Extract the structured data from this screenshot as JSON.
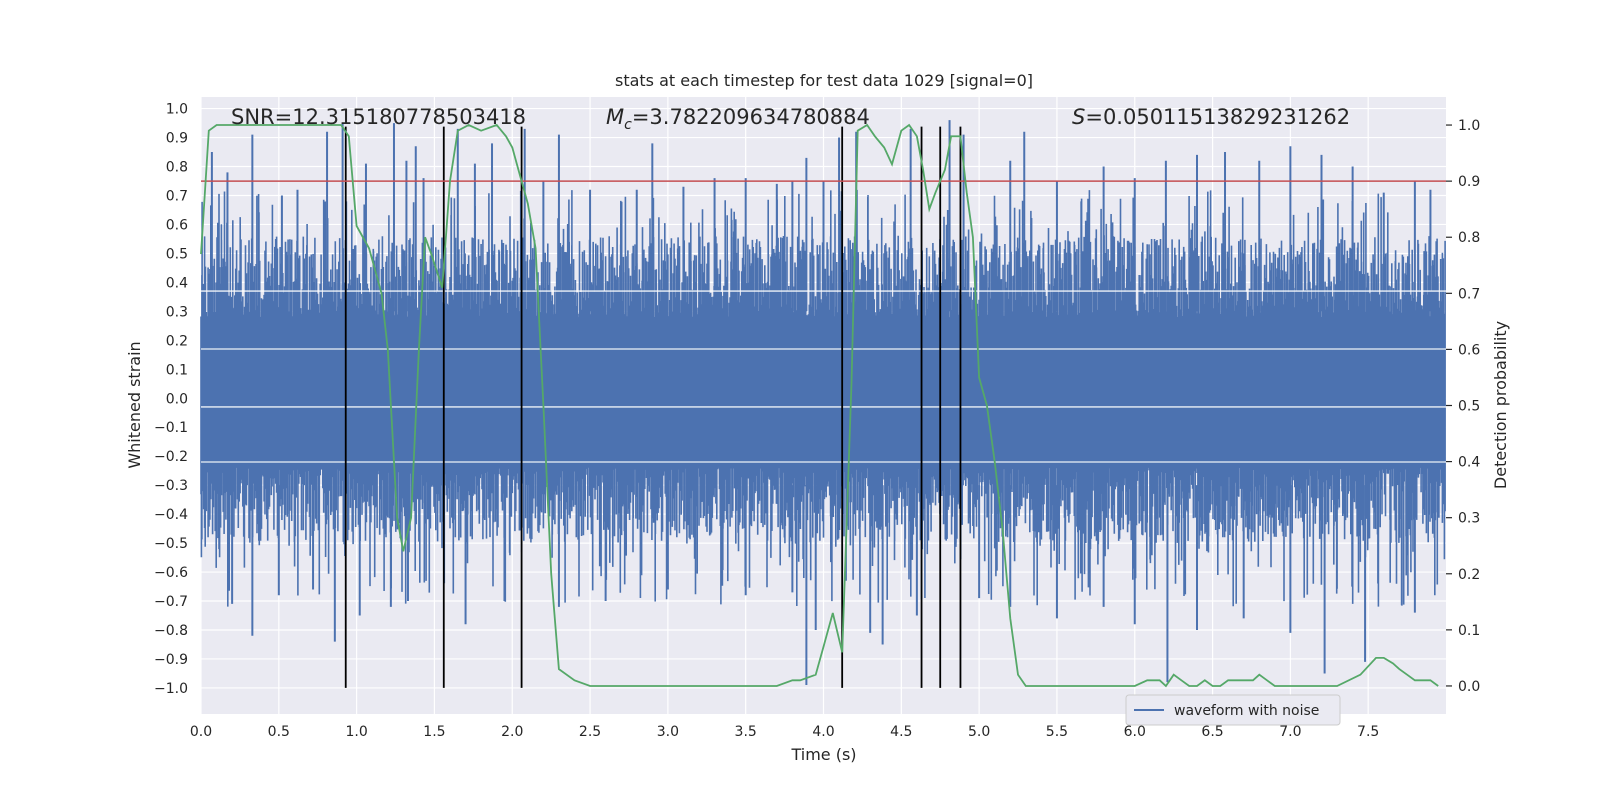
{
  "chart_data": {
    "type": "line",
    "title": "stats at each timestep for test data 1029 [signal=0]",
    "xlabel": "Time (s)",
    "ylabel": "Whitened strain",
    "ylabel_right": "Detection probability",
    "xlim": [
      0,
      8
    ],
    "ylim": [
      -1.09,
      1.04
    ],
    "ylim_right": [
      -0.05,
      1.05
    ],
    "x_ticks": [
      0.0,
      0.5,
      1.0,
      1.5,
      2.0,
      2.5,
      3.0,
      3.5,
      4.0,
      4.5,
      5.0,
      5.5,
      6.0,
      6.5,
      7.0,
      7.5
    ],
    "x_tick_labels": [
      "0.0",
      "0.5",
      "1.0",
      "1.5",
      "2.0",
      "2.5",
      "3.0",
      "3.5",
      "4.0",
      "4.5",
      "5.0",
      "5.5",
      "6.0",
      "6.5",
      "7.0",
      "7.5"
    ],
    "y_ticks": [
      1.0,
      0.9,
      0.8,
      0.7,
      0.6,
      0.5,
      0.4,
      0.3,
      0.2,
      0.1,
      0.0,
      -0.1,
      -0.2,
      -0.3,
      -0.4,
      -0.5,
      -0.6,
      -0.7,
      -0.8,
      -0.9,
      -1.0
    ],
    "y_tick_labels": [
      "1.0",
      "0.9",
      "0.8",
      "0.7",
      "0.6",
      "0.5",
      "0.4",
      "0.3",
      "0.2",
      "0.1",
      "0.0",
      "−0.1",
      "−0.2",
      "−0.3",
      "−0.4",
      "−0.5",
      "−0.6",
      "−0.7",
      "−0.8",
      "−0.9",
      "−1.0"
    ],
    "y_right_ticks": [
      1.0,
      0.9,
      0.8,
      0.7,
      0.6,
      0.5,
      0.4,
      0.3,
      0.2,
      0.1,
      0.0
    ],
    "y_right_tick_labels": [
      "1.0",
      "0.9",
      "0.8",
      "0.7",
      "0.6",
      "0.5",
      "0.4",
      "0.3",
      "0.2",
      "0.1",
      "0.0"
    ],
    "grid": true,
    "annotations": {
      "snr": "SNR=12.315180778503418",
      "mc_symbol": "M",
      "mc_subscript": "c",
      "mc_value": "=3.782209634780884",
      "s_symbol": "S",
      "s_value": "=0.05011513829231262"
    },
    "threshold": {
      "value": 0.9,
      "axis": "right",
      "color": "#c44e52"
    },
    "vertical_lines_x": [
      0.93,
      1.56,
      2.06,
      4.12,
      4.63,
      4.75,
      4.88
    ],
    "vertical_lines_range": [
      -1.0,
      1.0
    ],
    "series": [
      {
        "name": "waveform with noise",
        "axis": "left",
        "color": "#4c72b0",
        "description_core_range": [
          -0.42,
          0.52
        ],
        "positive_spike_peaks": [
          [
            0.07,
            0.85
          ],
          [
            0.17,
            0.78
          ],
          [
            0.33,
            0.91
          ],
          [
            0.52,
            0.7
          ],
          [
            0.62,
            0.72
          ],
          [
            0.81,
            0.92
          ],
          [
            0.91,
            0.95
          ],
          [
            1.06,
            0.81
          ],
          [
            1.24,
            0.95
          ],
          [
            1.32,
            0.82
          ],
          [
            1.38,
            0.87
          ],
          [
            1.43,
            0.76
          ],
          [
            1.65,
            0.93
          ],
          [
            1.76,
            0.81
          ],
          [
            1.87,
            0.88
          ],
          [
            2.08,
            0.93
          ],
          [
            2.2,
            0.75
          ],
          [
            2.3,
            0.91
          ],
          [
            2.5,
            0.72
          ],
          [
            2.8,
            0.72
          ],
          [
            2.9,
            0.88
          ],
          [
            3.1,
            0.73
          ],
          [
            3.3,
            0.76
          ],
          [
            3.5,
            0.76
          ],
          [
            3.7,
            0.74
          ],
          [
            3.8,
            0.75
          ],
          [
            3.89,
            0.83
          ],
          [
            4.0,
            0.75
          ],
          [
            4.1,
            0.9
          ],
          [
            4.21,
            0.92
          ],
          [
            4.56,
            0.93
          ],
          [
            4.81,
            0.96
          ],
          [
            4.9,
            0.91
          ],
          [
            5.2,
            0.82
          ],
          [
            5.29,
            0.92
          ],
          [
            5.5,
            0.75
          ],
          [
            5.8,
            0.8
          ],
          [
            6.0,
            0.76
          ],
          [
            6.2,
            0.82
          ],
          [
            6.4,
            0.84
          ],
          [
            6.58,
            0.85
          ],
          [
            6.8,
            0.82
          ],
          [
            7.0,
            0.87
          ],
          [
            7.2,
            0.84
          ],
          [
            7.4,
            0.8
          ],
          [
            7.6,
            0.71
          ],
          [
            7.8,
            0.75
          ],
          [
            7.9,
            0.72
          ]
        ],
        "negative_spike_troughs": [
          [
            0.2,
            -0.71
          ],
          [
            0.33,
            -0.82
          ],
          [
            0.5,
            -0.68
          ],
          [
            0.72,
            -0.66
          ],
          [
            0.86,
            -0.84
          ],
          [
            1.02,
            -0.75
          ],
          [
            1.22,
            -0.72
          ],
          [
            1.33,
            -0.7
          ],
          [
            1.7,
            -0.78
          ],
          [
            1.95,
            -0.7
          ],
          [
            2.3,
            -0.72
          ],
          [
            2.6,
            -0.7
          ],
          [
            3.0,
            -0.66
          ],
          [
            3.5,
            -0.68
          ],
          [
            3.8,
            -0.67
          ],
          [
            3.89,
            -0.99
          ],
          [
            3.95,
            -0.8
          ],
          [
            4.3,
            -0.81
          ],
          [
            4.38,
            -0.85
          ],
          [
            4.6,
            -0.75
          ],
          [
            5.0,
            -0.69
          ],
          [
            5.2,
            -0.72
          ],
          [
            5.5,
            -0.76
          ],
          [
            5.8,
            -0.72
          ],
          [
            6.0,
            -0.78
          ],
          [
            6.21,
            -0.98
          ],
          [
            6.4,
            -0.8
          ],
          [
            6.7,
            -0.76
          ],
          [
            7.0,
            -0.81
          ],
          [
            7.22,
            -0.95
          ],
          [
            7.48,
            -0.91
          ],
          [
            7.8,
            -0.74
          ]
        ]
      },
      {
        "name": "detection probability",
        "axis": "right",
        "color": "#55a868",
        "x": [
          0.0,
          0.05,
          0.1,
          0.2,
          0.3,
          0.4,
          0.5,
          0.6,
          0.7,
          0.8,
          0.85,
          0.9,
          0.95,
          1.0,
          1.08,
          1.16,
          1.2,
          1.26,
          1.3,
          1.35,
          1.4,
          1.44,
          1.48,
          1.55,
          1.6,
          1.65,
          1.72,
          1.8,
          1.9,
          1.96,
          2.0,
          2.05,
          2.1,
          2.15,
          2.2,
          2.25,
          2.3,
          2.4,
          2.5,
          2.6,
          2.8,
          2.9,
          3.0,
          3.2,
          3.5,
          3.7,
          3.8,
          3.85,
          3.95,
          4.0,
          4.06,
          4.12,
          4.18,
          4.22,
          4.28,
          4.33,
          4.39,
          4.44,
          4.5,
          4.55,
          4.6,
          4.64,
          4.68,
          4.72,
          4.78,
          4.82,
          4.88,
          4.92,
          4.96,
          5.0,
          5.05,
          5.1,
          5.15,
          5.2,
          5.25,
          5.3,
          5.5,
          5.8,
          6.0,
          6.08,
          6.12,
          6.16,
          6.2,
          6.25,
          6.3,
          6.35,
          6.4,
          6.45,
          6.5,
          6.55,
          6.6,
          6.65,
          6.7,
          6.76,
          6.8,
          6.85,
          6.9,
          7.0,
          7.3,
          7.45,
          7.55,
          7.6,
          7.66,
          7.7,
          7.75,
          7.8,
          7.85,
          7.9,
          7.95
        ],
        "values": [
          0.77,
          0.99,
          1.0,
          1.0,
          1.0,
          1.0,
          1.0,
          1.0,
          1.0,
          1.0,
          1.0,
          1.0,
          0.98,
          0.82,
          0.78,
          0.7,
          0.6,
          0.3,
          0.24,
          0.3,
          0.6,
          0.8,
          0.77,
          0.71,
          0.9,
          0.99,
          1.0,
          0.99,
          1.0,
          0.98,
          0.96,
          0.91,
          0.86,
          0.78,
          0.5,
          0.2,
          0.03,
          0.01,
          0.0,
          0.0,
          0.0,
          0.0,
          0.0,
          0.0,
          0.0,
          0.0,
          0.01,
          0.01,
          0.02,
          0.07,
          0.13,
          0.06,
          0.54,
          0.99,
          1.0,
          0.98,
          0.96,
          0.93,
          0.99,
          1.0,
          0.98,
          0.92,
          0.85,
          0.88,
          0.92,
          0.98,
          0.98,
          0.88,
          0.8,
          0.55,
          0.5,
          0.4,
          0.28,
          0.12,
          0.02,
          0.0,
          0.0,
          0.0,
          0.0,
          0.01,
          0.01,
          0.01,
          0.0,
          0.02,
          0.01,
          0.0,
          0.0,
          0.01,
          0.0,
          0.0,
          0.01,
          0.01,
          0.01,
          0.01,
          0.02,
          0.01,
          0.0,
          0.0,
          0.0,
          0.02,
          0.05,
          0.05,
          0.04,
          0.03,
          0.02,
          0.01,
          0.01,
          0.01,
          0.0
        ]
      }
    ],
    "legend": {
      "entries": [
        "waveform with noise"
      ],
      "placement": "bottom-right"
    }
  }
}
